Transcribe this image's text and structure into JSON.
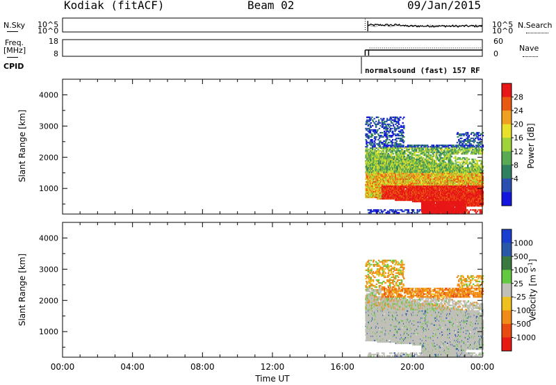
{
  "header": {
    "station": "Kodiak (fitACF)",
    "beam": "Beam 02",
    "date": "09/Jan/2015"
  },
  "top_panels": {
    "nsky_label": "N.Sky",
    "nsearch_label": "N.Search",
    "freq_label_line1": "Freq.",
    "freq_label_line2": "[MHz]",
    "nave_label": "Nave",
    "cpid_label": "CPID",
    "noise_left_ticks": [
      "10^5",
      "10^0"
    ],
    "noise_right_ticks": [
      "10^5",
      "10^0"
    ],
    "freq_left_ticks": [
      "18",
      "8"
    ],
    "nave_right_ticks": [
      "60",
      "0"
    ],
    "cpid_text": "normalsound (fast) 157 RF"
  },
  "chart_data": [
    {
      "type": "heatmap",
      "name": "power",
      "ylabel": "Slant Range [km]",
      "ylim": [
        180,
        4500
      ],
      "xlim": [
        0,
        24
      ],
      "yticks": [
        "1000",
        "2000",
        "3000",
        "4000"
      ],
      "colorbar_label": "Power [dB]",
      "colorbar_ticks": [
        "4",
        "8",
        "12",
        "16",
        "20",
        "24",
        "28"
      ],
      "colorbar_colors": [
        "#1515e0",
        "#2a4fb0",
        "#2f8060",
        "#5aaa55",
        "#9ed43a",
        "#e8e02a",
        "#f0a020",
        "#e85a12",
        "#e81616"
      ],
      "data_start_hour": 17.3,
      "data_end_hour": 24.0
    },
    {
      "type": "heatmap",
      "name": "velocity",
      "ylabel": "Slant Range [km]",
      "ylim": [
        180,
        4500
      ],
      "xlim": [
        0,
        24
      ],
      "yticks": [
        "1000",
        "2000",
        "3000",
        "4000"
      ],
      "colorbar_label": "Velocity [m s",
      "colorbar_label_sup": "-1",
      "colorbar_label_tail": "]",
      "colorbar_ticks": [
        "1000",
        "500",
        "100",
        "25",
        "-25",
        "-100",
        "-500",
        "-1000"
      ],
      "colorbar_colors": [
        "#1a3fd0",
        "#2a58a8",
        "#3a7a40",
        "#64c840",
        "#c0c0b8",
        "#f0c020",
        "#f08a18",
        "#e84a12",
        "#e81a14"
      ],
      "data_start_hour": 17.3,
      "data_end_hour": 24.0
    }
  ],
  "x_axis": {
    "ticks": [
      "00:00",
      "04:00",
      "08:00",
      "12:00",
      "16:00",
      "20:00",
      "00:00"
    ],
    "label": "Time UT"
  }
}
